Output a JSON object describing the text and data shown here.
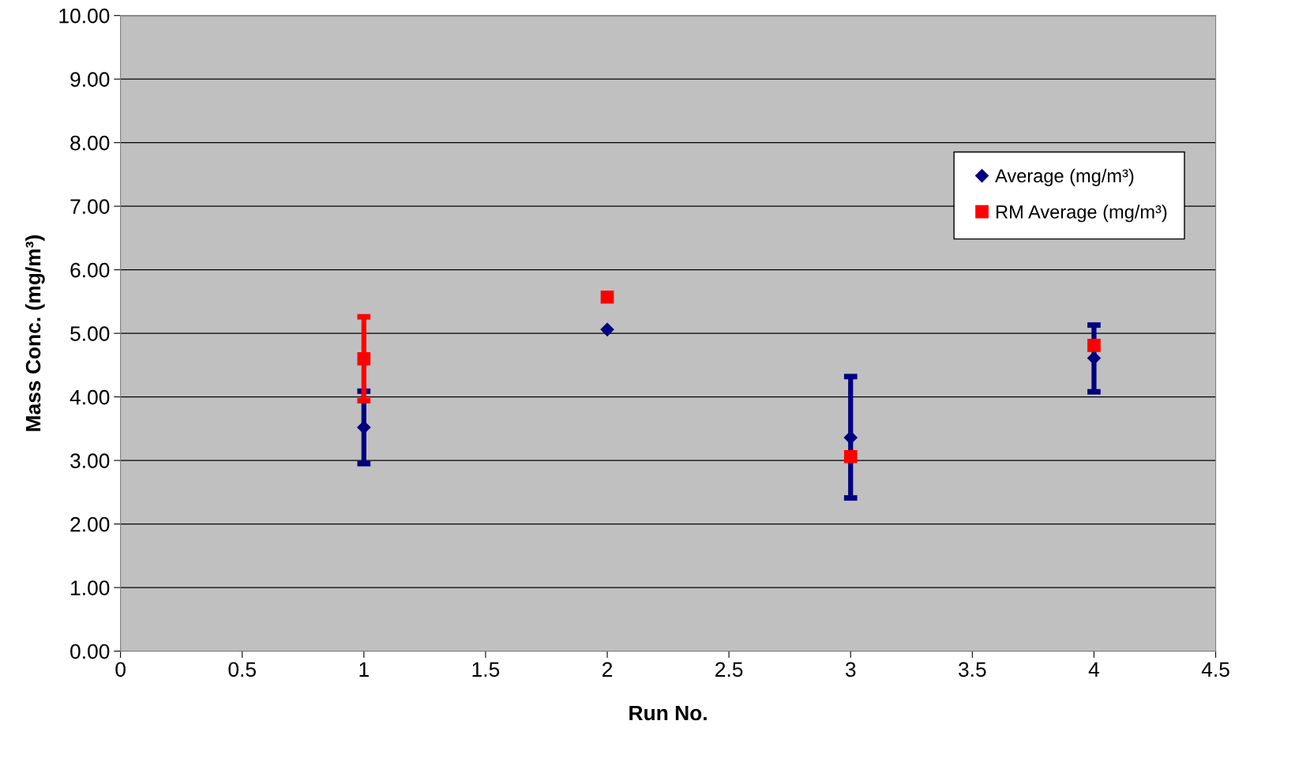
{
  "chart_data": {
    "type": "scatter",
    "xlabel": "Run No.",
    "ylabel": "Mass Conc. (mg/m³)",
    "x": [
      1,
      2,
      3,
      4
    ],
    "series": [
      {
        "name": "Average (mg/m³)",
        "color": "#000080",
        "marker": "diamond",
        "values": [
          3.52,
          5.06,
          3.36,
          4.61
        ],
        "errors": [
          [
            2.95,
            4.09
          ],
          null,
          [
            2.41,
            4.32
          ],
          [
            4.08,
            5.13
          ]
        ]
      },
      {
        "name": "RM Average (mg/m³)",
        "color": "#ff0000",
        "marker": "square",
        "values": [
          4.6,
          5.57,
          3.06,
          4.81
        ],
        "errors": [
          [
            3.94,
            5.26
          ],
          null,
          null,
          null
        ]
      }
    ],
    "xlim": [
      0,
      4.5
    ],
    "xticks": [
      0,
      0.5,
      1,
      1.5,
      2,
      2.5,
      3,
      3.5,
      4,
      4.5
    ],
    "ylim": [
      0,
      10
    ],
    "yticks": [
      {
        "value": 0,
        "label": "0.00"
      },
      {
        "value": 1,
        "label": "1.00"
      },
      {
        "value": 2,
        "label": "2.00"
      },
      {
        "value": 3,
        "label": "3.00"
      },
      {
        "value": 4,
        "label": "4.00"
      },
      {
        "value": 5,
        "label": "5.00"
      },
      {
        "value": 6,
        "label": "6.00"
      },
      {
        "value": 7,
        "label": "7.00"
      },
      {
        "value": 8,
        "label": "8.00"
      },
      {
        "value": 9,
        "label": "9.00"
      },
      {
        "value": 10,
        "label": "10.00"
      }
    ],
    "grid": "y",
    "legend": "top right"
  }
}
